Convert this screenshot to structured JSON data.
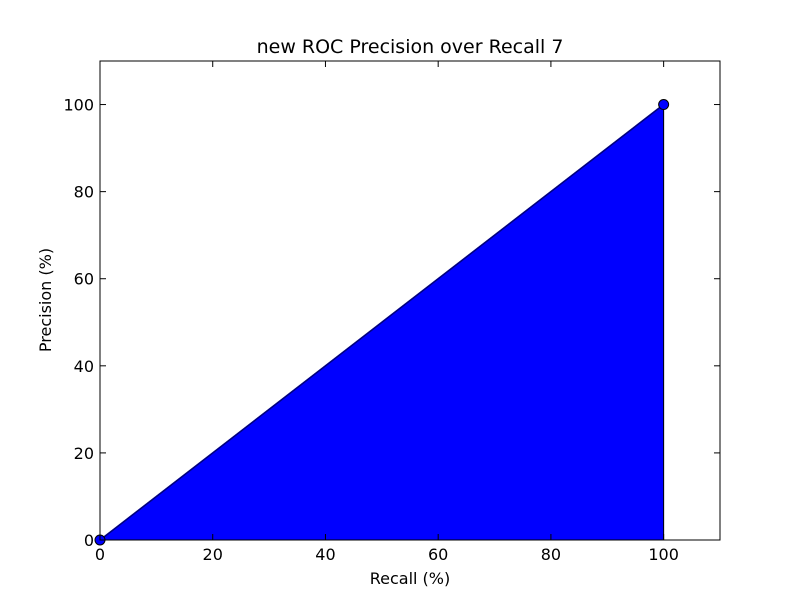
{
  "chart_data": {
    "type": "area",
    "title": "new ROC Precision over Recall 7",
    "xlabel": "Recall (%)",
    "ylabel": "Precision (%)",
    "xlim": [
      0,
      110
    ],
    "ylim": [
      0,
      110
    ],
    "xticks": [
      0,
      20,
      40,
      60,
      80,
      100
    ],
    "yticks": [
      0,
      20,
      40,
      60,
      80,
      100
    ],
    "grid": false,
    "series": [
      {
        "x": [
          0,
          100
        ],
        "y": [
          0,
          100
        ],
        "fill_to": 0,
        "color": "#0000ff",
        "line_color": "#000080",
        "marker": "circle"
      }
    ]
  }
}
